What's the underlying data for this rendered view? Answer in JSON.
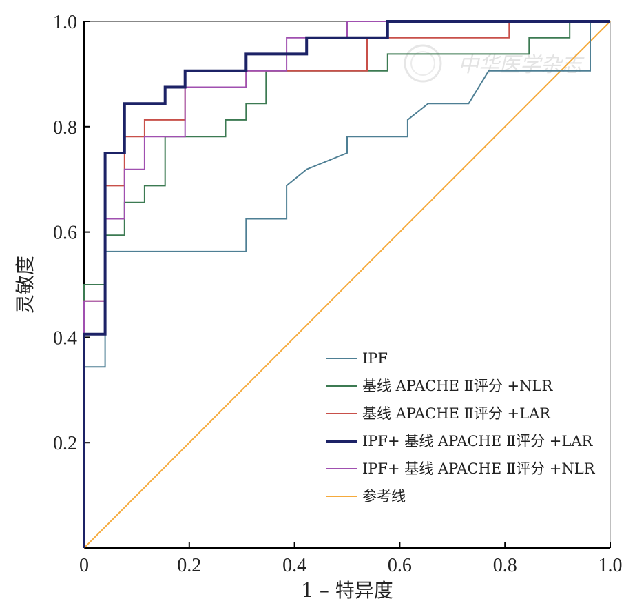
{
  "chart_data": {
    "type": "line",
    "xlabel": "1 – 特异度",
    "ylabel": "灵敏度",
    "xlim": [
      0,
      1
    ],
    "ylim": [
      0,
      1
    ],
    "x_ticks": [
      "0",
      "0.2",
      "0.4",
      "0.6",
      "0.8",
      "1.0"
    ],
    "y_ticks": [
      "0.2",
      "0.4",
      "0.6",
      "0.8",
      "1.0"
    ],
    "grid": false,
    "legend_position": "bottom-right",
    "series": [
      {
        "name": "IPF",
        "color": "#4e7f94",
        "points": [
          [
            0,
            0
          ],
          [
            0,
            0.344
          ],
          [
            0.04,
            0.344
          ],
          [
            0.04,
            0.563
          ],
          [
            0.308,
            0.563
          ],
          [
            0.308,
            0.625
          ],
          [
            0.385,
            0.625
          ],
          [
            0.385,
            0.688
          ],
          [
            0.423,
            0.719
          ],
          [
            0.5,
            0.75
          ],
          [
            0.5,
            0.781
          ],
          [
            0.615,
            0.781
          ],
          [
            0.615,
            0.813
          ],
          [
            0.654,
            0.844
          ],
          [
            0.731,
            0.844
          ],
          [
            0.769,
            0.906
          ],
          [
            0.962,
            0.906
          ],
          [
            0.962,
            1
          ],
          [
            1,
            1
          ]
        ]
      },
      {
        "name": "基线 APACHE Ⅱ评分 +NLR",
        "color": "#3c7a52",
        "points": [
          [
            0,
            0
          ],
          [
            0,
            0.5
          ],
          [
            0.04,
            0.5
          ],
          [
            0.04,
            0.594
          ],
          [
            0.077,
            0.594
          ],
          [
            0.077,
            0.656
          ],
          [
            0.115,
            0.656
          ],
          [
            0.115,
            0.688
          ],
          [
            0.154,
            0.688
          ],
          [
            0.154,
            0.781
          ],
          [
            0.269,
            0.781
          ],
          [
            0.269,
            0.813
          ],
          [
            0.308,
            0.813
          ],
          [
            0.308,
            0.844
          ],
          [
            0.346,
            0.844
          ],
          [
            0.346,
            0.906
          ],
          [
            0.577,
            0.906
          ],
          [
            0.577,
            0.938
          ],
          [
            0.846,
            0.938
          ],
          [
            0.846,
            0.969
          ],
          [
            0.923,
            0.969
          ],
          [
            0.923,
            1
          ],
          [
            1,
            1
          ]
        ]
      },
      {
        "name": "基线 APACHE Ⅱ评分 +LAR",
        "color": "#c8504a",
        "points": [
          [
            0,
            0
          ],
          [
            0,
            0.469
          ],
          [
            0.04,
            0.469
          ],
          [
            0.04,
            0.688
          ],
          [
            0.077,
            0.688
          ],
          [
            0.077,
            0.781
          ],
          [
            0.115,
            0.781
          ],
          [
            0.115,
            0.813
          ],
          [
            0.192,
            0.813
          ],
          [
            0.192,
            0.875
          ],
          [
            0.308,
            0.875
          ],
          [
            0.308,
            0.906
          ],
          [
            0.538,
            0.906
          ],
          [
            0.538,
            0.969
          ],
          [
            0.808,
            0.969
          ],
          [
            0.808,
            1
          ],
          [
            1,
            1
          ]
        ]
      },
      {
        "name": "IPF+ 基线 APACHE Ⅱ评分 +NLR",
        "color": "#a050b0",
        "points": [
          [
            0,
            0
          ],
          [
            0,
            0.469
          ],
          [
            0.04,
            0.469
          ],
          [
            0.04,
            0.625
          ],
          [
            0.077,
            0.625
          ],
          [
            0.077,
            0.719
          ],
          [
            0.115,
            0.719
          ],
          [
            0.115,
            0.781
          ],
          [
            0.192,
            0.781
          ],
          [
            0.192,
            0.875
          ],
          [
            0.308,
            0.875
          ],
          [
            0.308,
            0.906
          ],
          [
            0.385,
            0.906
          ],
          [
            0.385,
            0.969
          ],
          [
            0.5,
            0.969
          ],
          [
            0.5,
            1
          ],
          [
            1,
            1
          ]
        ]
      },
      {
        "name": "IPF+ 基线 APACHE Ⅱ评分 +LAR",
        "color": "#1c2266",
        "points": [
          [
            0,
            0
          ],
          [
            0,
            0.406
          ],
          [
            0.04,
            0.406
          ],
          [
            0.04,
            0.75
          ],
          [
            0.077,
            0.75
          ],
          [
            0.077,
            0.844
          ],
          [
            0.154,
            0.844
          ],
          [
            0.154,
            0.875
          ],
          [
            0.192,
            0.875
          ],
          [
            0.192,
            0.906
          ],
          [
            0.308,
            0.906
          ],
          [
            0.308,
            0.938
          ],
          [
            0.423,
            0.938
          ],
          [
            0.423,
            0.969
          ],
          [
            0.577,
            0.969
          ],
          [
            0.577,
            1
          ],
          [
            1,
            1
          ]
        ]
      },
      {
        "name": "参考线",
        "color": "#f5aa3c",
        "points": [
          [
            0,
            0
          ],
          [
            1,
            1
          ]
        ]
      }
    ]
  },
  "watermark": {
    "text": "中华医学杂志",
    "color": "#e3e3e3"
  }
}
